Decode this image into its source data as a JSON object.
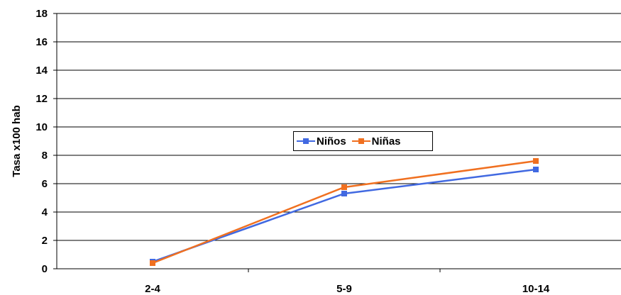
{
  "chart_data": {
    "type": "line",
    "categories": [
      "2-4",
      "5-9",
      "10-14"
    ],
    "series": [
      {
        "name": "Niños",
        "values": [
          0.5,
          5.3,
          7.0
        ],
        "color": "#4169e1",
        "marker": "square"
      },
      {
        "name": "Niñas",
        "values": [
          0.4,
          5.75,
          7.6
        ],
        "color": "#f07020",
        "marker": "square"
      }
    ],
    "title": "",
    "xlabel": "",
    "ylabel": "Tasa x100 hab",
    "ylim": [
      0,
      18
    ],
    "yticks": [
      "0",
      "2",
      "4",
      "6",
      "8",
      "10",
      "12",
      "14",
      "16",
      "18"
    ],
    "grid": true,
    "legend_position": "center"
  }
}
